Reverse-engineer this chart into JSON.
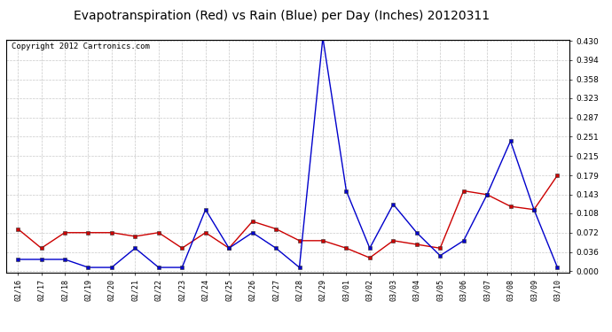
{
  "title": "Evapotranspiration (Red) vs Rain (Blue) per Day (Inches) 20120311",
  "copyright": "Copyright 2012 Cartronics.com",
  "labels": [
    "02/16",
    "02/17",
    "02/18",
    "02/19",
    "02/20",
    "02/21",
    "02/22",
    "02/23",
    "02/24",
    "02/25",
    "02/26",
    "02/27",
    "02/28",
    "02/29",
    "03/01",
    "03/02",
    "03/03",
    "03/04",
    "03/05",
    "03/06",
    "03/07",
    "03/08",
    "03/09",
    "03/10"
  ],
  "red_data": [
    0.079,
    0.043,
    0.072,
    0.072,
    0.072,
    0.065,
    0.072,
    0.043,
    0.072,
    0.043,
    0.093,
    0.079,
    0.057,
    0.057,
    0.043,
    0.025,
    0.057,
    0.05,
    0.043,
    0.15,
    0.143,
    0.121,
    0.115,
    0.179
  ],
  "blue_data": [
    0.022,
    0.022,
    0.022,
    0.007,
    0.007,
    0.043,
    0.007,
    0.007,
    0.115,
    0.043,
    0.072,
    0.043,
    0.007,
    0.436,
    0.15,
    0.043,
    0.125,
    0.072,
    0.029,
    0.057,
    0.143,
    0.243,
    0.115,
    0.007
  ],
  "yticks": [
    0.0,
    0.036,
    0.072,
    0.108,
    0.143,
    0.179,
    0.215,
    0.251,
    0.287,
    0.323,
    0.358,
    0.394,
    0.43
  ],
  "ymax": 0.43,
  "ymin": 0.0,
  "red_color": "#cc0000",
  "blue_color": "#0000cc",
  "bg_color": "#ffffff",
  "grid_color": "#bbbbbb",
  "title_fontsize": 10,
  "copyright_fontsize": 6.5
}
